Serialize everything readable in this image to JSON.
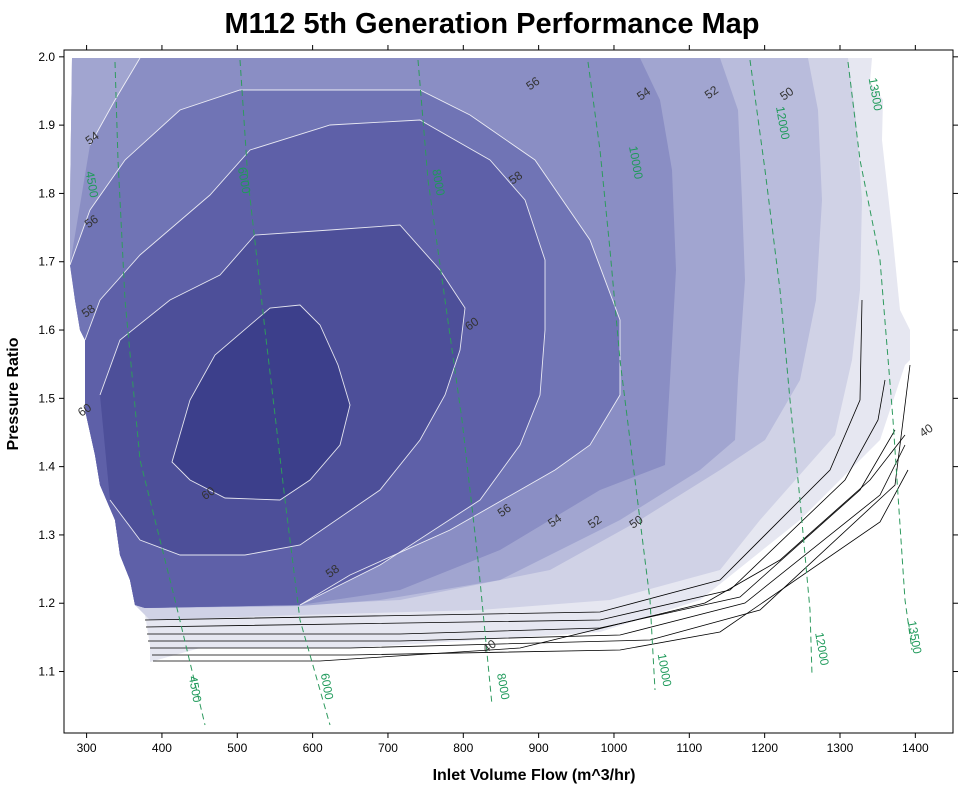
{
  "chart_data": {
    "type": "contour",
    "title": "M112 5th Generation Performance Map",
    "xlabel": "Inlet Volume Flow (m^3/hr)",
    "ylabel": "Pressure Ratio",
    "xlim": [
      270,
      1450
    ],
    "ylim": [
      1.01,
      2.01
    ],
    "x_ticks": [
      300,
      400,
      500,
      600,
      700,
      800,
      900,
      1000,
      1100,
      1200,
      1300,
      1400
    ],
    "y_ticks": [
      1.1,
      1.2,
      1.3,
      1.4,
      1.5,
      1.6,
      1.7,
      1.8,
      1.9,
      2.0
    ],
    "grid": false,
    "colors": {
      "band_40": "#e6e7f1",
      "band_50": "#d0d2e6",
      "band_52": "#b9bcdc",
      "band_54": "#a1a5d0",
      "band_56": "#8a8ec4",
      "band_58": "#7074b5",
      "band_60": "#5e60a8",
      "band_62": "#4d4f99",
      "band_64": "#3c3f8b",
      "speed_line": "#2e9a5e",
      "efficiency_line": "#ffffff"
    },
    "efficiency_contours": [
      {
        "level": "40",
        "label_points": [
          [
            835,
            1.136
          ],
          [
            1415,
            1.452
          ]
        ]
      },
      {
        "level": "50",
        "label_points": [
          [
            1230,
            1.945
          ],
          [
            1030,
            1.318
          ]
        ]
      },
      {
        "level": "52",
        "label_points": [
          [
            1130,
            1.947
          ],
          [
            975,
            1.318
          ]
        ]
      },
      {
        "level": "54",
        "label_points": [
          [
            308,
            1.88
          ],
          [
            1040,
            1.945
          ],
          [
            922,
            1.32
          ]
        ]
      },
      {
        "level": "56",
        "label_points": [
          [
            307,
            1.758
          ],
          [
            893,
            1.96
          ],
          [
            855,
            1.335
          ]
        ]
      },
      {
        "level": "58",
        "label_points": [
          [
            303,
            1.627
          ],
          [
            870,
            1.822
          ],
          [
            627,
            1.246
          ]
        ]
      },
      {
        "level": "60",
        "label_points": [
          [
            298,
            1.482
          ],
          [
            812,
            1.608
          ],
          [
            462,
            1.36
          ]
        ]
      }
    ],
    "speed_lines": [
      {
        "label": "4500",
        "top_label": [
          306,
          1.813
        ],
        "bottom_label": [
          443,
          1.074
        ]
      },
      {
        "label": "6000",
        "top_label": [
          508,
          1.819
        ],
        "bottom_label": [
          618,
          1.078
        ]
      },
      {
        "label": "8000",
        "top_label": [
          766,
          1.816
        ],
        "bottom_label": [
          852,
          1.078
        ]
      },
      {
        "label": "10000",
        "top_label": [
          1028,
          1.845
        ],
        "bottom_label": [
          1066,
          1.102
        ]
      },
      {
        "label": "12000",
        "top_label": [
          1223,
          1.903
        ],
        "bottom_label": [
          1275,
          1.133
        ]
      },
      {
        "label": "13500",
        "top_label": [
          1346,
          1.945
        ],
        "bottom_label": [
          1398,
          1.15
        ]
      }
    ]
  }
}
